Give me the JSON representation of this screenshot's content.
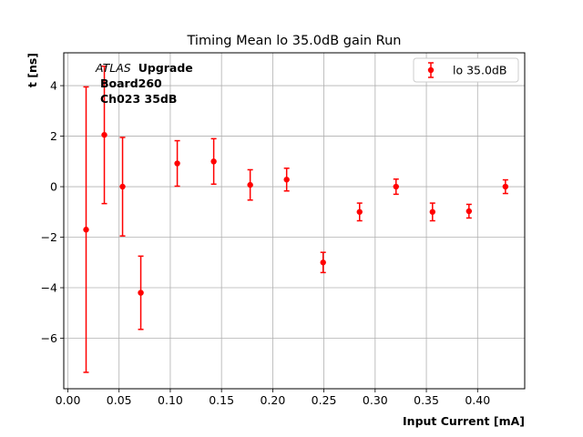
{
  "chart_data": {
    "type": "scatter",
    "title": "Timing Mean lo 35.0dB gain Run",
    "xlabel": "Input Current [mA]",
    "ylabel": "t [ns]",
    "xlim": [
      -0.004,
      0.446
    ],
    "ylim": [
      -8.0,
      5.3
    ],
    "xticks": [
      0.0,
      0.05,
      0.1,
      0.15,
      0.2,
      0.25,
      0.3,
      0.35,
      0.4
    ],
    "xtick_labels": [
      "0.00",
      "0.05",
      "0.10",
      "0.15",
      "0.20",
      "0.25",
      "0.30",
      "0.35",
      "0.40"
    ],
    "yticks": [
      -6,
      -4,
      -2,
      0,
      2,
      4
    ],
    "ytick_labels": [
      "−6",
      "−4",
      "−2",
      "0",
      "2",
      "4"
    ],
    "grid": true,
    "legend_position": "top-right",
    "annotation": {
      "atlas": "ATLAS",
      "upgrade": "Upgrade",
      "line2": "Board260",
      "line3": "Ch023 35dB"
    },
    "series": [
      {
        "name": "lo 35.0dB",
        "color": "#ff0000",
        "x": [
          0.0178,
          0.0356,
          0.0534,
          0.0712,
          0.1068,
          0.1424,
          0.178,
          0.2136,
          0.2492,
          0.2848,
          0.3204,
          0.356,
          0.3916,
          0.4272
        ],
        "y": [
          -1.7,
          2.05,
          0.0,
          -4.2,
          0.92,
          1.0,
          0.07,
          0.28,
          -3.0,
          -1.0,
          0.0,
          -1.0,
          -0.97,
          0.0
        ],
        "yerr": [
          5.65,
          2.72,
          1.95,
          1.45,
          0.9,
          0.9,
          0.6,
          0.45,
          0.4,
          0.35,
          0.3,
          0.35,
          0.27,
          0.27
        ]
      }
    ]
  }
}
